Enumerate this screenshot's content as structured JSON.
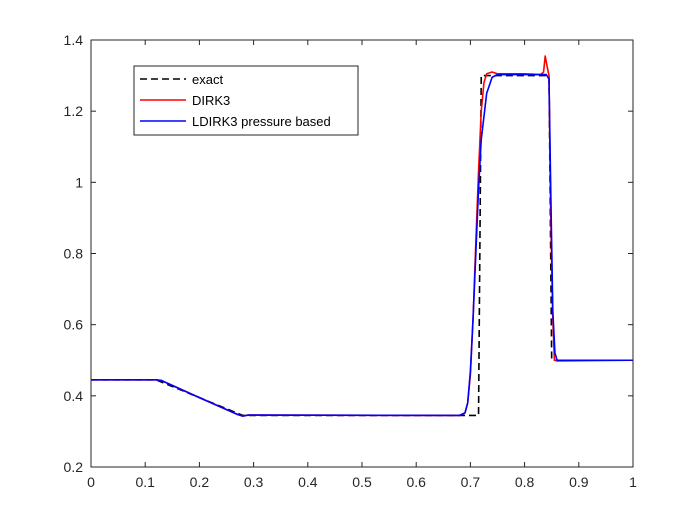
{
  "chart_data": {
    "type": "line",
    "title": "",
    "xlabel": "",
    "ylabel": "",
    "xlim": [
      0,
      1
    ],
    "ylim": [
      0.2,
      1.4
    ],
    "xticks": [
      "0",
      "0.1",
      "0.2",
      "0.3",
      "0.4",
      "0.5",
      "0.6",
      "0.7",
      "0.8",
      "0.9",
      "1"
    ],
    "yticks": [
      "0.2",
      "0.4",
      "0.6",
      "0.8",
      "1",
      "1.2",
      "1.4"
    ],
    "grid": false,
    "legend_position": "top-left",
    "series": [
      {
        "name": "exact",
        "color": "#000000",
        "style": "dashed",
        "x": [
          0,
          0.12,
          0.28,
          0.71,
          0.715,
          0.72,
          0.84,
          0.845,
          0.85,
          1
        ],
        "y": [
          0.445,
          0.445,
          0.345,
          0.345,
          0.345,
          1.3,
          1.3,
          1.3,
          0.5,
          0.5
        ]
      },
      {
        "name": "DIRK3",
        "color": "#ff0000",
        "style": "solid",
        "x": [
          0,
          0.12,
          0.13,
          0.2,
          0.27,
          0.28,
          0.29,
          0.68,
          0.69,
          0.695,
          0.7,
          0.705,
          0.71,
          0.715,
          0.72,
          0.725,
          0.73,
          0.74,
          0.75,
          0.8,
          0.83,
          0.835,
          0.838,
          0.841,
          0.845,
          0.848,
          0.852,
          0.855,
          0.86,
          1
        ],
        "y": [
          0.445,
          0.445,
          0.443,
          0.395,
          0.348,
          0.343,
          0.346,
          0.345,
          0.352,
          0.38,
          0.46,
          0.62,
          0.83,
          1.03,
          1.2,
          1.28,
          1.305,
          1.31,
          1.305,
          1.305,
          1.303,
          1.31,
          1.355,
          1.33,
          1.3,
          0.93,
          0.62,
          0.5,
          0.498,
          0.5
        ]
      },
      {
        "name": "LDIRK3 pressure based",
        "color": "#0000ff",
        "style": "solid",
        "x": [
          0,
          0.12,
          0.13,
          0.2,
          0.27,
          0.28,
          0.29,
          0.68,
          0.69,
          0.695,
          0.7,
          0.705,
          0.71,
          0.715,
          0.72,
          0.73,
          0.74,
          0.75,
          0.8,
          0.84,
          0.845,
          0.848,
          0.852,
          0.856,
          0.86,
          1
        ],
        "y": [
          0.445,
          0.445,
          0.443,
          0.395,
          0.348,
          0.343,
          0.346,
          0.345,
          0.352,
          0.38,
          0.47,
          0.62,
          0.8,
          0.98,
          1.12,
          1.25,
          1.295,
          1.303,
          1.303,
          1.303,
          1.29,
          1.0,
          0.64,
          0.52,
          0.5,
          0.5
        ]
      }
    ]
  }
}
